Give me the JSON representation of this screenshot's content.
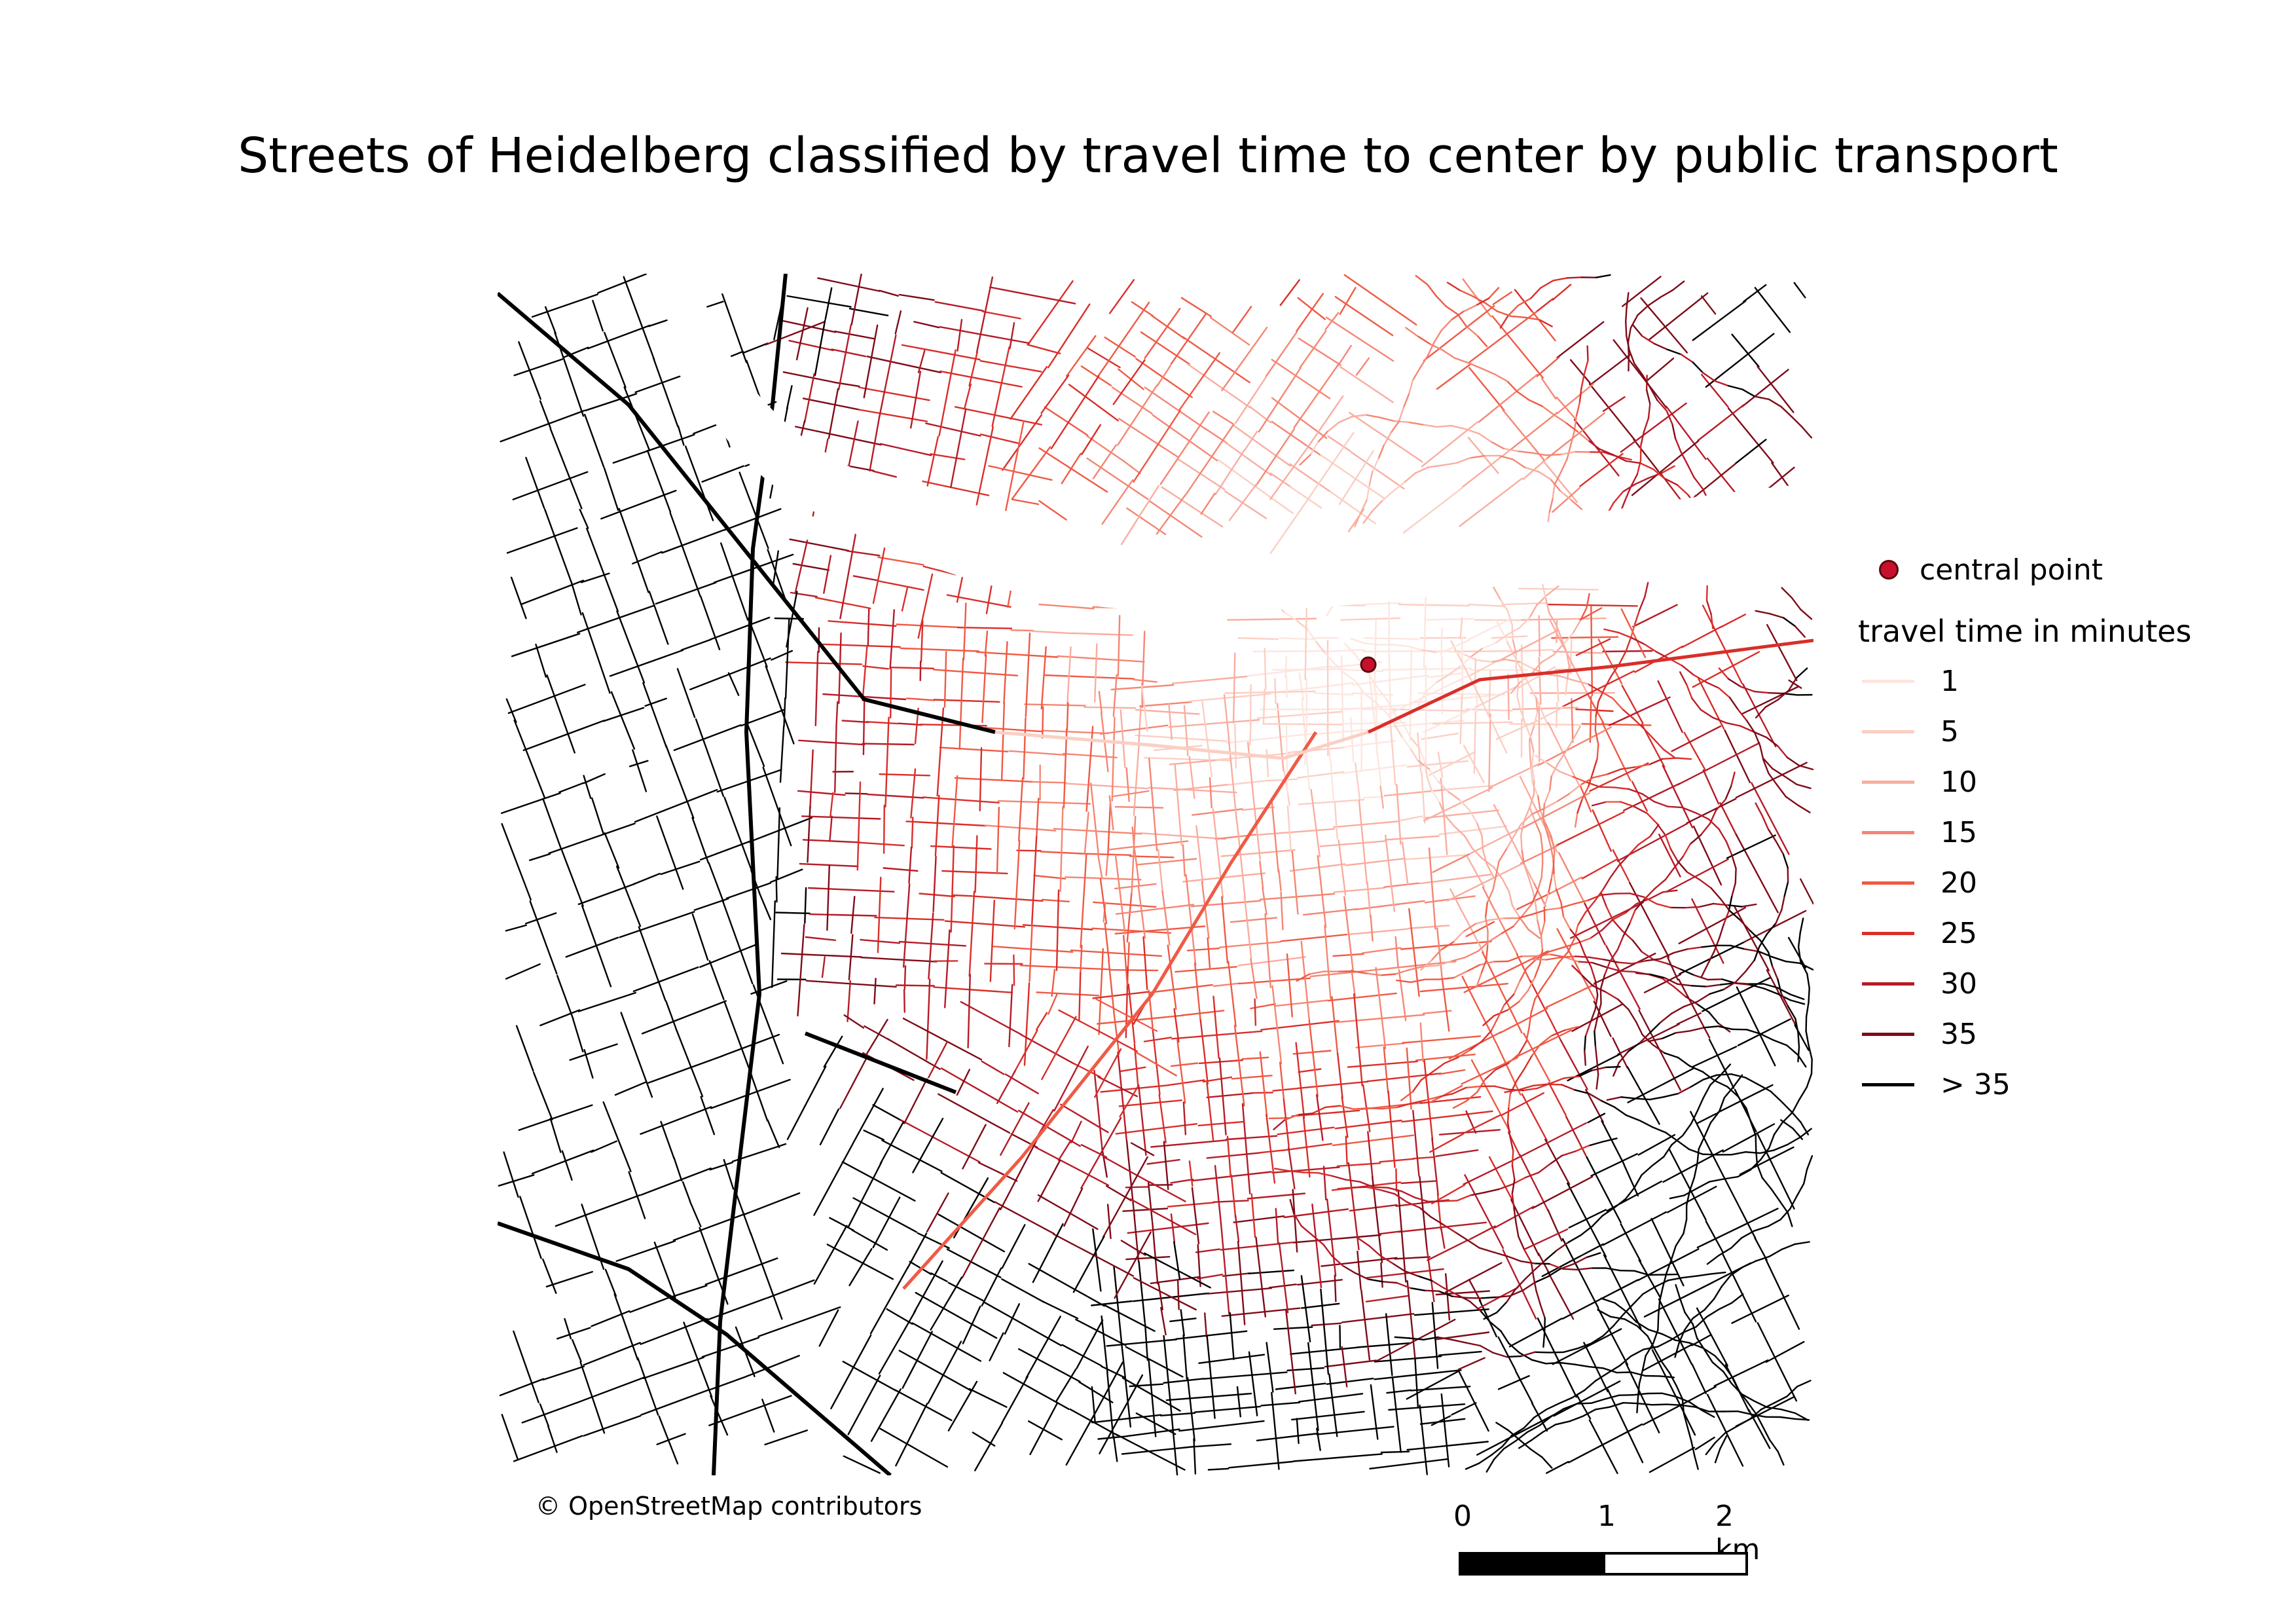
{
  "title": "Streets of Heidelberg classified by travel time to center by public transport",
  "attribution": "© OpenStreetMap contributors",
  "legend": {
    "point_label": "central point",
    "group_title": "travel time in minutes",
    "classes": [
      {
        "label": "1",
        "color": "#fde6e0"
      },
      {
        "label": "5",
        "color": "#fbcfc3"
      },
      {
        "label": "10",
        "color": "#f9ada0"
      },
      {
        "label": "15",
        "color": "#f58673"
      },
      {
        "label": "20",
        "color": "#ef5a45"
      },
      {
        "label": "25",
        "color": "#d92e2a"
      },
      {
        "label": "30",
        "color": "#b61b27"
      },
      {
        "label": "35",
        "color": "#7e0b18"
      },
      {
        "label": "> 35",
        "color": "#000000"
      }
    ]
  },
  "central_point": {
    "color": "#c8102e"
  },
  "scalebar": {
    "labels": [
      "0",
      "1",
      "2 km"
    ]
  },
  "map_style": {
    "river_color": "#ffffff",
    "background": "#ffffff"
  }
}
